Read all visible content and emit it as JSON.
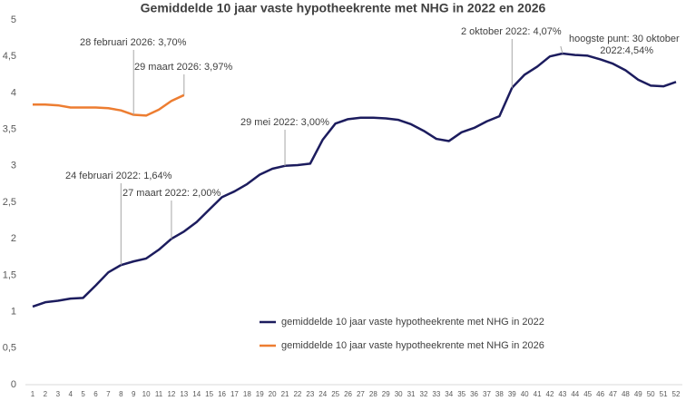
{
  "chart_data": {
    "type": "line",
    "title": "Gemiddelde 10 jaar vaste hypotheekrente met NHG in 2022 en 2026",
    "categories": [
      "1",
      "2",
      "3",
      "4",
      "5",
      "6",
      "7",
      "8",
      "9",
      "10",
      "11",
      "12",
      "13",
      "14",
      "15",
      "16",
      "17",
      "18",
      "19",
      "20",
      "21",
      "22",
      "23",
      "24",
      "25",
      "26",
      "27",
      "28",
      "29",
      "30",
      "31",
      "32",
      "33",
      "34",
      "35",
      "36",
      "37",
      "38",
      "39",
      "40",
      "41",
      "42",
      "43",
      "44",
      "45",
      "46",
      "47",
      "48",
      "49",
      "50",
      "51",
      "52"
    ],
    "series": [
      {
        "name": "gemiddelde 10 jaar vaste hypotheekrente met NHG in 2022",
        "color": "#1c1c5e",
        "values": [
          1.07,
          1.13,
          1.15,
          1.18,
          1.19,
          1.36,
          1.54,
          1.64,
          1.69,
          1.73,
          1.85,
          2.0,
          2.1,
          2.23,
          2.4,
          2.57,
          2.65,
          2.75,
          2.88,
          2.96,
          3.0,
          3.01,
          3.03,
          3.36,
          3.58,
          3.64,
          3.66,
          3.66,
          3.65,
          3.63,
          3.57,
          3.48,
          3.37,
          3.34,
          3.46,
          3.52,
          3.61,
          3.68,
          4.07,
          4.25,
          4.36,
          4.5,
          4.54,
          4.52,
          4.51,
          4.46,
          4.4,
          4.31,
          4.18,
          4.1,
          4.09,
          4.15
        ]
      },
      {
        "name": "gemiddelde 10 jaar vaste hypotheekrente met NHG in 2026",
        "color": "#ed7d31",
        "values": [
          3.84,
          3.84,
          3.83,
          3.8,
          3.8,
          3.8,
          3.79,
          3.76,
          3.7,
          3.69,
          3.77,
          3.89,
          3.97,
          null,
          null,
          null,
          null,
          null,
          null,
          null,
          null,
          null,
          null,
          null,
          null,
          null,
          null,
          null,
          null,
          null,
          null,
          null,
          null,
          null,
          null,
          null,
          null,
          null,
          null,
          null,
          null,
          null,
          null,
          null,
          null,
          null,
          null,
          null,
          null,
          null,
          null,
          null
        ]
      }
    ],
    "ylim": [
      0,
      5
    ],
    "yticks": [
      0,
      {
        "value": 0.5,
        "label": "0,5"
      },
      1,
      {
        "value": 1.5,
        "label": "1,5"
      },
      2,
      {
        "value": 2.5,
        "label": "2,5"
      },
      3,
      {
        "value": 3.5,
        "label": "3,5"
      },
      4,
      {
        "value": 4.5,
        "label": "4,5"
      },
      5
    ],
    "grid": false,
    "legend": "lower center",
    "annotations": [
      "28 februari 2026: 3,70%",
      "29 maart 2026: 3,97%",
      "24 februari 2022: 1,64%",
      "27 maart 2022: 2,00%",
      "29 mei 2022: 3,00%",
      "2 oktober 2022: 4,07%",
      "hoogste punt: 30 oktober",
      "2022:4,54%"
    ]
  }
}
